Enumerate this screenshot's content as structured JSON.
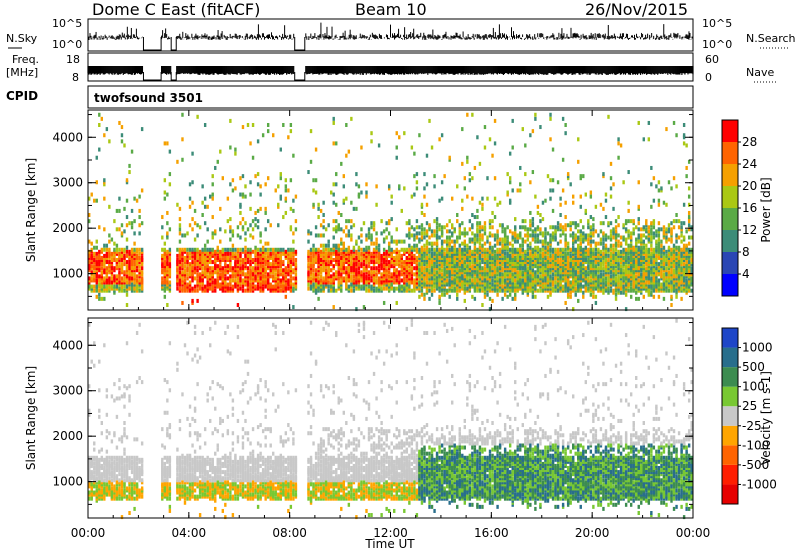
{
  "header": {
    "station": "Dome C East (fitACF)",
    "beam": "Beam 10",
    "date": "26/Nov/2015"
  },
  "summary": {
    "nsky_label": "N.Sky",
    "nsky_ticks": [
      "10^5",
      "10^0"
    ],
    "nsearch_label": "N.Search",
    "freq_label_1": "Freq.",
    "freq_label_2": "[MHz]",
    "freq_ticks": [
      "18",
      "8"
    ],
    "nave_label": "Nave",
    "nave_ticks": [
      "60",
      "0"
    ],
    "cpid_label": "CPID",
    "cpid_value": "twofsound 3501"
  },
  "x_axis": {
    "label": "Time UT",
    "ticks": [
      "00:00",
      "04:00",
      "08:00",
      "12:00",
      "16:00",
      "20:00",
      "00:00"
    ]
  },
  "chart_data": [
    {
      "type": "heatmap",
      "name": "power-panel",
      "xlabel": "Time UT",
      "ylabel": "Slant Range [km]",
      "xlim_hours": [
        0,
        24
      ],
      "ylim": [
        200,
        4600
      ],
      "yticks": [
        1000,
        2000,
        3000,
        4000
      ],
      "colorbar": {
        "label": "Power [dB]",
        "ticks": [
          4,
          8,
          12,
          16,
          20,
          24,
          28
        ],
        "range": [
          0,
          32
        ],
        "colors": [
          "#0000ff",
          "#2a46b4",
          "#3c8c78",
          "#5aaa46",
          "#aac814",
          "#f5a000",
          "#ff6400",
          "#ff0000"
        ]
      },
      "data_gaps_hours": [
        [
          2.2,
          2.9
        ],
        [
          3.3,
          3.5
        ],
        [
          8.2,
          8.6
        ]
      ]
    },
    {
      "type": "heatmap",
      "name": "velocity-panel",
      "xlabel": "Time UT",
      "ylabel": "Slant Range [km]",
      "xlim_hours": [
        0,
        24
      ],
      "ylim": [
        200,
        4600
      ],
      "yticks": [
        1000,
        2000,
        3000,
        4000
      ],
      "colorbar": {
        "label": "Velocity [m s-1]",
        "ticks": [
          "1000",
          "500",
          "100",
          "25",
          "-25",
          "-100",
          "-500",
          "-1000"
        ],
        "colors": [
          "#1e46c8",
          "#286e8c",
          "#3c8c50",
          "#78c832",
          "#c8c8c8",
          "#ffa500",
          "#ff6400",
          "#ff1e00",
          "#e60000"
        ]
      },
      "data_gaps_hours": [
        [
          2.2,
          2.9
        ],
        [
          3.3,
          3.5
        ],
        [
          8.2,
          8.6
        ]
      ]
    }
  ]
}
